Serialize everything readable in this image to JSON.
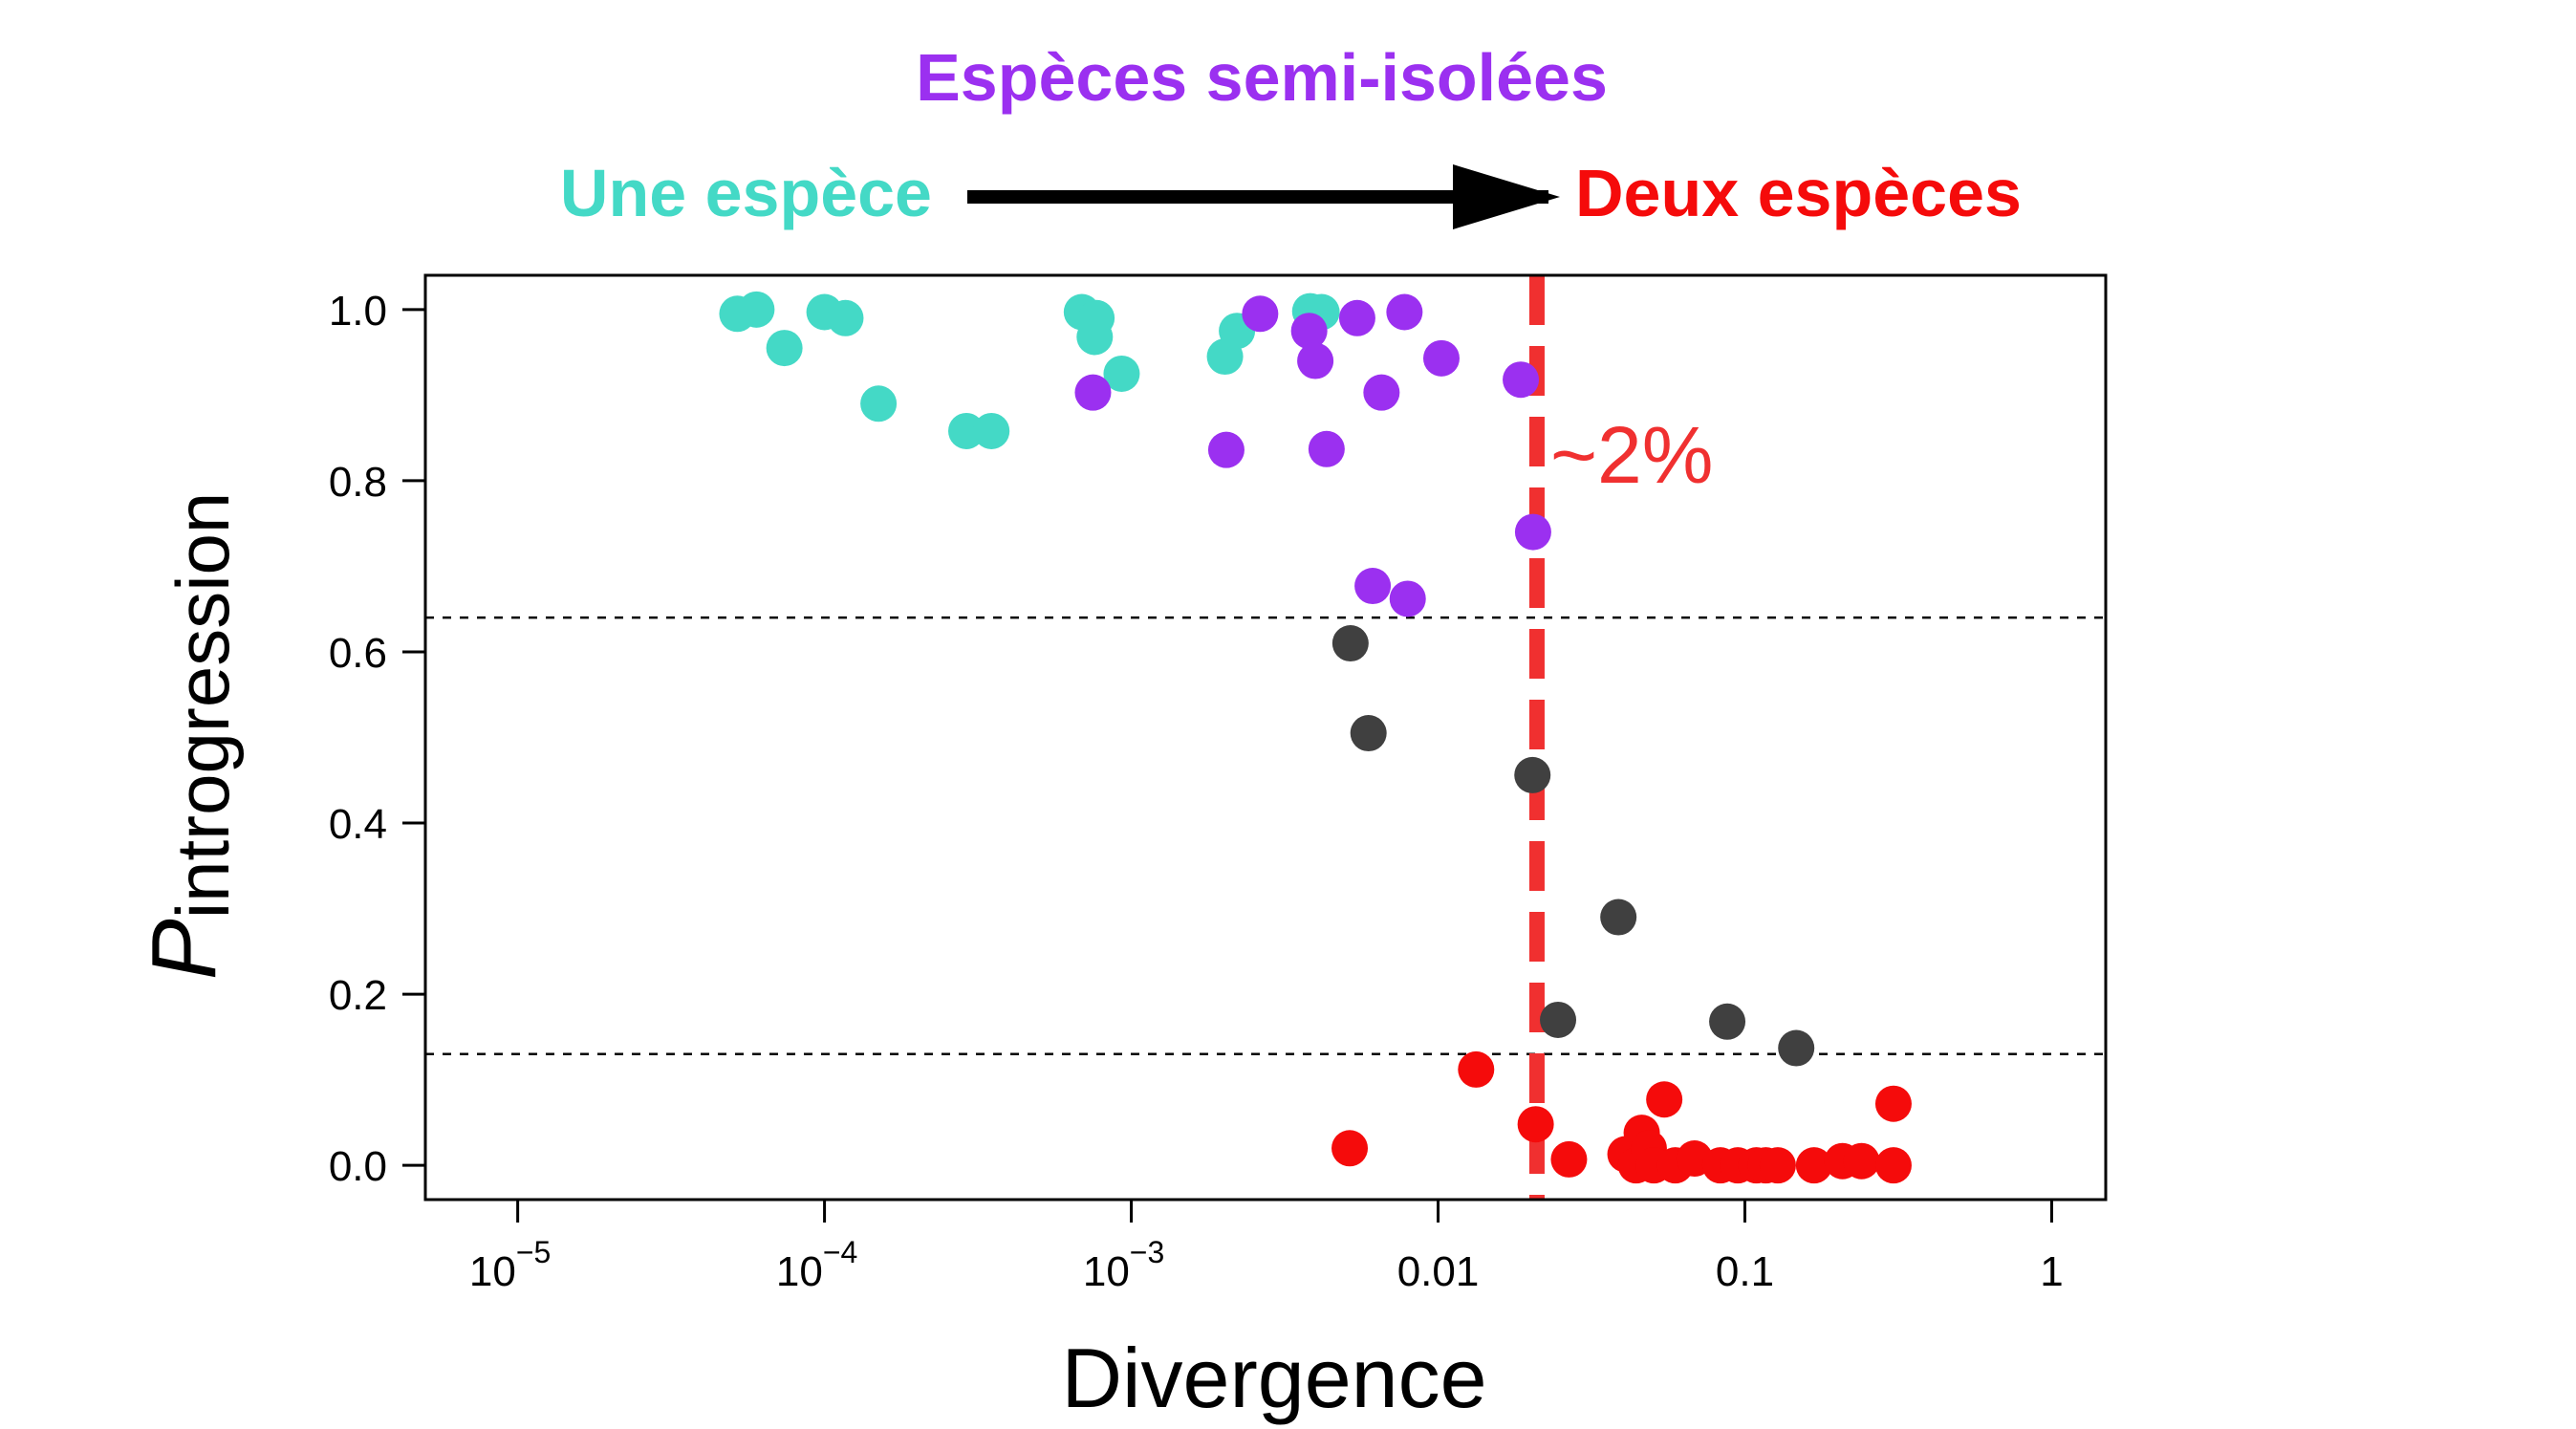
{
  "chart_data": {
    "type": "scatter",
    "xlabel": "Divergence",
    "ylabel_main": "P",
    "ylabel_sub": "introgression",
    "x_scale": "log10",
    "xlim": [
      5e-06,
      1.5
    ],
    "ylim": [
      -0.04,
      1.04
    ],
    "x_ticks": [
      {
        "value": 1e-05,
        "base": "10",
        "exp": "−5"
      },
      {
        "value": 0.0001,
        "base": "10",
        "exp": "−4"
      },
      {
        "value": 0.001,
        "base": "10",
        "exp": "−3"
      },
      {
        "value": 0.01,
        "label": "0.01"
      },
      {
        "value": 0.1,
        "label": "0.1"
      },
      {
        "value": 1,
        "label": "1"
      }
    ],
    "y_ticks": [
      {
        "value": 0.0,
        "label": "0.0"
      },
      {
        "value": 0.2,
        "label": "0.2"
      },
      {
        "value": 0.4,
        "label": "0.4"
      },
      {
        "value": 0.6,
        "label": "0.6"
      },
      {
        "value": 0.8,
        "label": "0.8"
      },
      {
        "value": 1.0,
        "label": "1.0"
      }
    ],
    "threshold_lines": [
      0.64,
      0.13
    ],
    "divergence_threshold": {
      "x": 0.021,
      "label": "~2%",
      "color": "#f03030"
    },
    "categories_header": {
      "left": {
        "text": "Une espèce",
        "color": "#44d9c6"
      },
      "middle": {
        "text": "Espèces semi-isolées",
        "color": "#9b30f0"
      },
      "right": {
        "text": "Deux espèces",
        "color": "#f50b0b"
      }
    },
    "series": [
      {
        "color": "#44d9c6",
        "points": [
          [
            5.2e-05,
            0.995
          ],
          [
            6e-05,
            1.0
          ],
          [
            7.4e-05,
            0.955
          ],
          [
            0.0001,
            0.997
          ],
          [
            0.000117,
            0.99
          ],
          [
            0.00015,
            0.89
          ],
          [
            0.00029,
            0.858
          ],
          [
            0.00035,
            0.858
          ],
          [
            0.00069,
            0.997
          ],
          [
            0.00077,
            0.99
          ],
          [
            0.00076,
            0.968
          ],
          [
            0.00093,
            0.925
          ],
          [
            0.00202,
            0.945
          ],
          [
            0.00221,
            0.975
          ],
          [
            0.00383,
            0.998
          ],
          [
            0.00417,
            0.997
          ]
        ]
      },
      {
        "color": "#9b30f0",
        "points": [
          [
            0.00263,
            0.995
          ],
          [
            0.0038,
            0.975
          ],
          [
            0.00398,
            0.94
          ],
          [
            0.00545,
            0.99
          ],
          [
            0.00777,
            0.997
          ],
          [
            0.01025,
            0.943
          ],
          [
            0.0186,
            0.918
          ],
          [
            0.00075,
            0.903
          ],
          [
            0.00654,
            0.903
          ],
          [
            0.00204,
            0.836
          ],
          [
            0.00433,
            0.837
          ],
          [
            0.0204,
            0.74
          ],
          [
            0.00612,
            0.677
          ],
          [
            0.00796,
            0.662
          ]
        ]
      },
      {
        "color": "#404040",
        "points": [
          [
            0.00518,
            0.61
          ],
          [
            0.00593,
            0.505
          ],
          [
            0.0203,
            0.456
          ],
          [
            0.0387,
            0.29
          ],
          [
            0.0246,
            0.17
          ],
          [
            0.0876,
            0.168
          ],
          [
            0.147,
            0.137
          ]
        ]
      },
      {
        "color": "#f50b0b",
        "points": [
          [
            0.00515,
            0.02
          ],
          [
            0.0133,
            0.112
          ],
          [
            0.0208,
            0.048
          ],
          [
            0.0267,
            0.007
          ],
          [
            0.0408,
            0.013
          ],
          [
            0.0442,
            0.0
          ],
          [
            0.0461,
            0.038
          ],
          [
            0.0486,
            0.02
          ],
          [
            0.0505,
            0.0
          ],
          [
            0.0546,
            0.077
          ],
          [
            0.0593,
            0.0
          ],
          [
            0.0685,
            0.008
          ],
          [
            0.0832,
            0.0
          ],
          [
            0.0948,
            0.0
          ],
          [
            0.109,
            0.0
          ],
          [
            0.117,
            0.0
          ],
          [
            0.128,
            0.0
          ],
          [
            0.168,
            0.0
          ],
          [
            0.208,
            0.005
          ],
          [
            0.24,
            0.005
          ],
          [
            0.305,
            0.0
          ],
          [
            0.305,
            0.072
          ]
        ]
      }
    ]
  }
}
